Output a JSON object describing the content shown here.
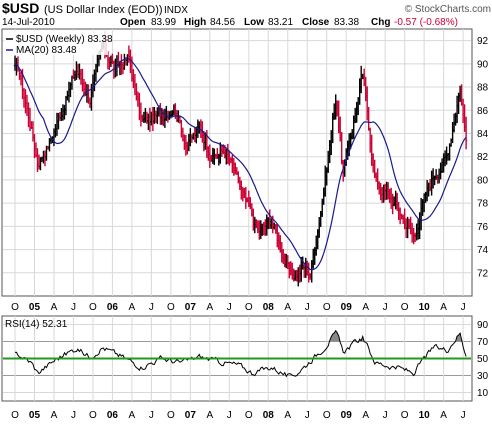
{
  "header": {
    "symbol": "$USD",
    "name": "(US Dollar Index (EOD))",
    "exchange": "INDX",
    "watermark": "© StockCharts.com",
    "date": "14-Jul-2010",
    "open_label": "Open",
    "open": "83.99",
    "high_label": "High",
    "high": "84.56",
    "low_label": "Low",
    "low": "83.21",
    "close_label": "Close",
    "close": "83.38",
    "chg_label": "Chg",
    "chg": "-0.57 (-0.68%)"
  },
  "legend": {
    "price": "$USD (Weekly) 83.38",
    "ma": "MA(20) 83.48",
    "rsi": "RSI(14) 52.31"
  },
  "colors": {
    "up_bar": "#000000",
    "down_bar": "#cc0033",
    "ma_line": "#1a1a8c",
    "rsi_line": "#000000",
    "rsi_mid": "#1f9a1f",
    "rsi_fill": "#888888",
    "grid": "#d8d8d8"
  },
  "chart_data": [
    {
      "type": "ohlc",
      "title": "$USD (Weekly)",
      "ylim": [
        70,
        93
      ],
      "y_ticks": [
        72,
        74,
        76,
        78,
        80,
        82,
        84,
        86,
        88,
        90,
        92
      ],
      "x_tick_labels": [
        "O",
        "05",
        "A",
        "J",
        "O",
        "06",
        "A",
        "J",
        "O",
        "07",
        "A",
        "J",
        "O",
        "08",
        "A",
        "J",
        "O",
        "09",
        "A",
        "J",
        "O",
        "10",
        "A",
        "J"
      ],
      "close_keypoints": [
        {
          "t": "2004-10",
          "v": 89.5
        },
        {
          "t": "2004-12",
          "v": 84.5
        },
        {
          "t": "2005-01",
          "v": 81.5
        },
        {
          "t": "2005-03",
          "v": 83.5
        },
        {
          "t": "2005-07",
          "v": 89.5
        },
        {
          "t": "2005-09",
          "v": 87.0
        },
        {
          "t": "2005-11",
          "v": 91.5
        },
        {
          "t": "2006-01",
          "v": 89.5
        },
        {
          "t": "2006-03",
          "v": 90.5
        },
        {
          "t": "2006-05",
          "v": 85.0
        },
        {
          "t": "2006-08",
          "v": 85.5
        },
        {
          "t": "2006-10",
          "v": 86.5
        },
        {
          "t": "2006-12",
          "v": 83.0
        },
        {
          "t": "2007-02",
          "v": 84.5
        },
        {
          "t": "2007-04",
          "v": 82.0
        },
        {
          "t": "2007-06",
          "v": 82.5
        },
        {
          "t": "2007-09",
          "v": 78.0
        },
        {
          "t": "2007-11",
          "v": 75.5
        },
        {
          "t": "2008-01",
          "v": 76.5
        },
        {
          "t": "2008-04",
          "v": 71.5
        },
        {
          "t": "2008-06",
          "v": 72.5
        },
        {
          "t": "2008-07",
          "v": 72.0
        },
        {
          "t": "2008-09",
          "v": 79.0
        },
        {
          "t": "2008-11",
          "v": 87.5
        },
        {
          "t": "2008-12",
          "v": 80.5
        },
        {
          "t": "2009-03",
          "v": 89.0
        },
        {
          "t": "2009-05",
          "v": 80.0
        },
        {
          "t": "2009-08",
          "v": 78.0
        },
        {
          "t": "2009-11",
          "v": 75.0
        },
        {
          "t": "2009-12",
          "v": 77.5
        },
        {
          "t": "2010-02",
          "v": 80.5
        },
        {
          "t": "2010-04",
          "v": 82.0
        },
        {
          "t": "2010-06",
          "v": 88.0
        },
        {
          "t": "2010-07",
          "v": 83.4
        }
      ],
      "series": [
        {
          "name": "$USD (Weekly)",
          "style": "ohlc bars, black up / red down"
        },
        {
          "name": "MA(20)",
          "style": "line",
          "last": 83.48
        }
      ]
    },
    {
      "type": "line",
      "title": "RSI(14)",
      "ylim": [
        0,
        100
      ],
      "y_ticks": [
        10,
        30,
        50,
        70,
        90
      ],
      "reference_lines": [
        30,
        50,
        70
      ],
      "x_tick_labels": [
        "O",
        "05",
        "A",
        "J",
        "O",
        "06",
        "A",
        "J",
        "O",
        "07",
        "A",
        "J",
        "O",
        "08",
        "A",
        "J",
        "O",
        "09",
        "A",
        "J",
        "O",
        "10",
        "A",
        "J"
      ],
      "keypoints": [
        {
          "t": "2004-10",
          "v": 55
        },
        {
          "t": "2004-12",
          "v": 45
        },
        {
          "t": "2005-01",
          "v": 33
        },
        {
          "t": "2005-04",
          "v": 50
        },
        {
          "t": "2005-07",
          "v": 62
        },
        {
          "t": "2005-09",
          "v": 52
        },
        {
          "t": "2005-11",
          "v": 63
        },
        {
          "t": "2006-02",
          "v": 52
        },
        {
          "t": "2006-05",
          "v": 40
        },
        {
          "t": "2006-08",
          "v": 50
        },
        {
          "t": "2006-11",
          "v": 45
        },
        {
          "t": "2007-02",
          "v": 52
        },
        {
          "t": "2007-05",
          "v": 46
        },
        {
          "t": "2007-08",
          "v": 42
        },
        {
          "t": "2007-10",
          "v": 33
        },
        {
          "t": "2008-01",
          "v": 40
        },
        {
          "t": "2008-04",
          "v": 27
        },
        {
          "t": "2008-06",
          "v": 40
        },
        {
          "t": "2008-09",
          "v": 62
        },
        {
          "t": "2008-11",
          "v": 80
        },
        {
          "t": "2008-12",
          "v": 58
        },
        {
          "t": "2009-03",
          "v": 75
        },
        {
          "t": "2009-05",
          "v": 45
        },
        {
          "t": "2009-08",
          "v": 40
        },
        {
          "t": "2009-11",
          "v": 33
        },
        {
          "t": "2009-12",
          "v": 45
        },
        {
          "t": "2010-02",
          "v": 63
        },
        {
          "t": "2010-04",
          "v": 60
        },
        {
          "t": "2010-06",
          "v": 80
        },
        {
          "t": "2010-07",
          "v": 52.3
        }
      ],
      "series": [
        {
          "name": "RSI(14)",
          "last": 52.31
        }
      ]
    }
  ]
}
